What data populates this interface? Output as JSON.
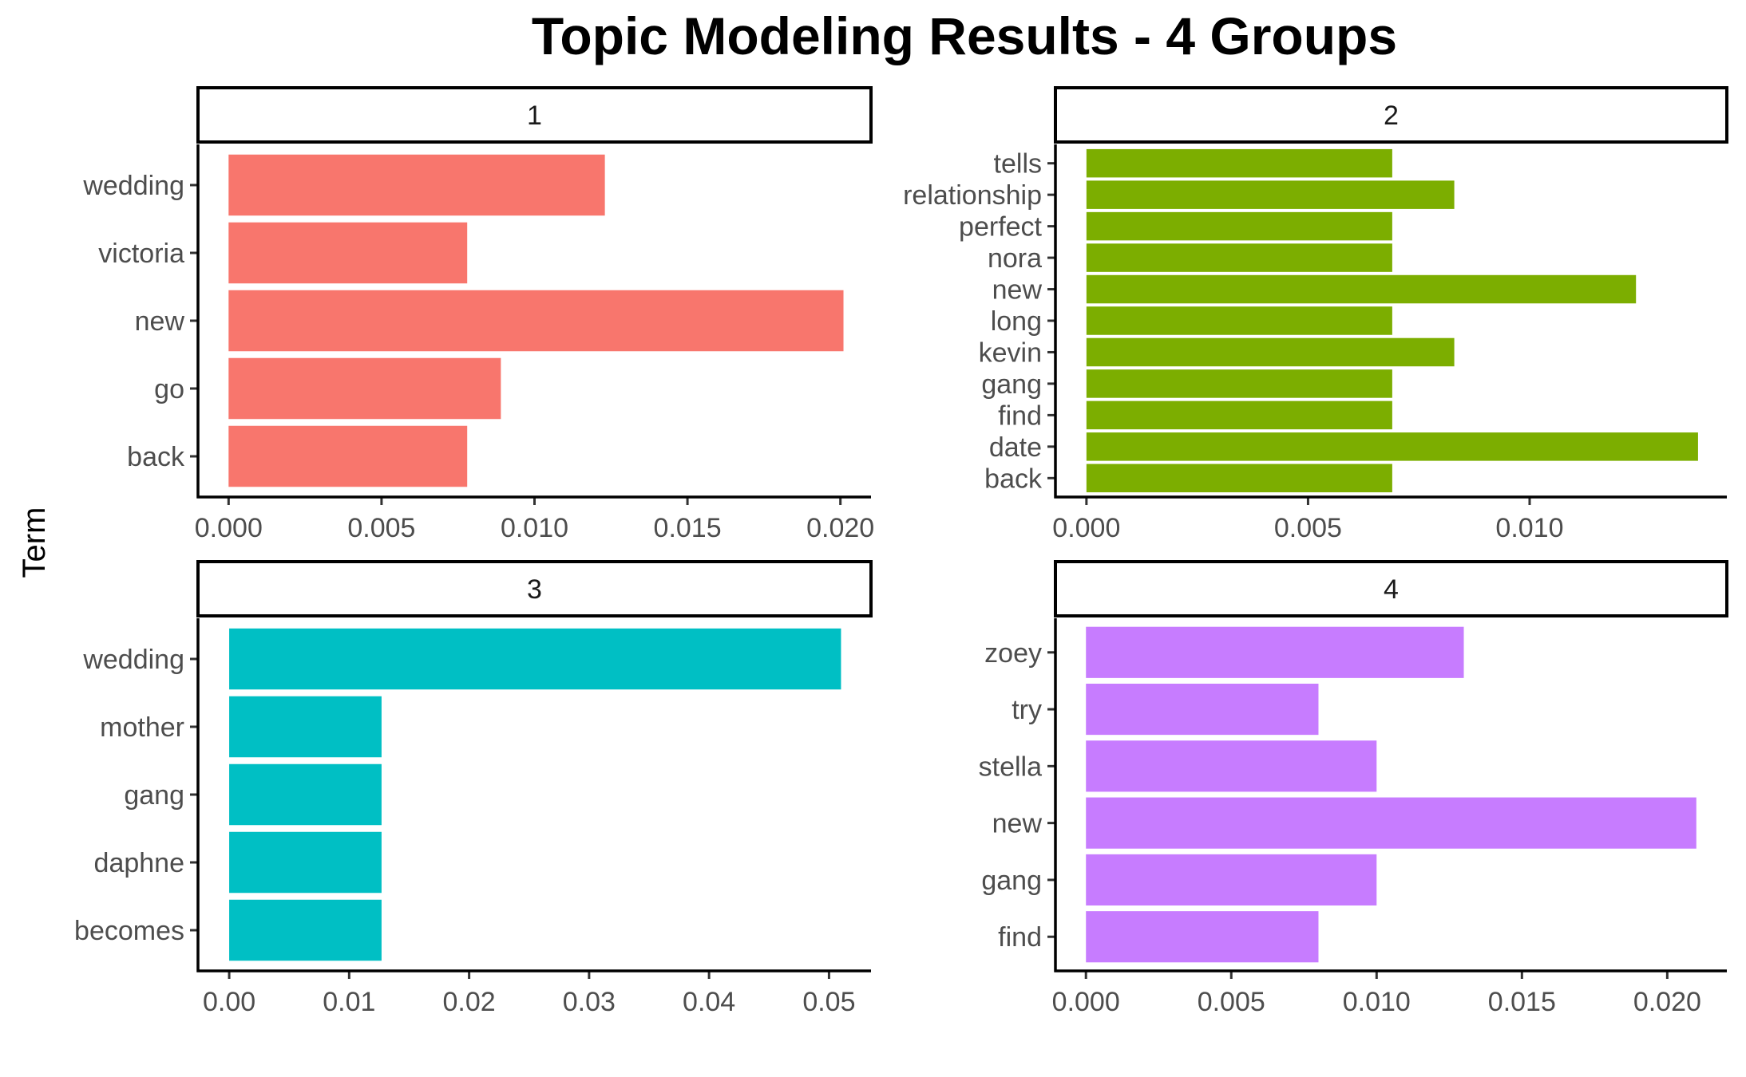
{
  "chart_data": {
    "type": "bar",
    "title": "Topic Modeling Results - 4 Groups",
    "ylabel": "Term",
    "xlabel": "",
    "grid": false,
    "legend": "none",
    "panels": [
      {
        "strip_label": "1",
        "color": "#F8766D",
        "categories": [
          "wedding",
          "victoria",
          "new",
          "go",
          "back"
        ],
        "values": [
          0.0123,
          0.0078,
          0.0201,
          0.0089,
          0.0078
        ],
        "xlim": [
          -0.001,
          0.021
        ],
        "xticks": [
          0,
          0.005,
          0.01,
          0.015,
          0.02
        ],
        "xtick_labels": [
          "0.000",
          "0.005",
          "0.010",
          "0.015",
          "0.020"
        ]
      },
      {
        "strip_label": "2",
        "color": "#7CAE00",
        "categories": [
          "tells",
          "relationship",
          "perfect",
          "nora",
          "new",
          "long",
          "kevin",
          "gang",
          "find",
          "date",
          "back"
        ],
        "values": [
          0.0069,
          0.0083,
          0.0069,
          0.0069,
          0.0124,
          0.0069,
          0.0083,
          0.0069,
          0.0069,
          0.0138,
          0.0069
        ],
        "xlim": [
          -0.0007,
          0.01445
        ],
        "xticks": [
          0,
          0.005,
          0.01
        ],
        "xtick_labels": [
          "0.000",
          "0.005",
          "0.010"
        ]
      },
      {
        "strip_label": "3",
        "color": "#00BFC4",
        "categories": [
          "wedding",
          "mother",
          "gang",
          "daphne",
          "becomes"
        ],
        "values": [
          0.051,
          0.0127,
          0.0127,
          0.0127,
          0.0127
        ],
        "xlim": [
          -0.0026,
          0.0535
        ],
        "xticks": [
          0,
          0.01,
          0.02,
          0.03,
          0.04,
          0.05
        ],
        "xtick_labels": [
          "0.00",
          "0.01",
          "0.02",
          "0.03",
          "0.04",
          "0.05"
        ]
      },
      {
        "strip_label": "4",
        "color": "#C77CFF",
        "categories": [
          "zoey",
          "try",
          "stella",
          "new",
          "gang",
          "find"
        ],
        "values": [
          0.013,
          0.008,
          0.01,
          0.021,
          0.01,
          0.008
        ],
        "xlim": [
          -0.00105,
          0.02205
        ],
        "xticks": [
          0,
          0.005,
          0.01,
          0.015,
          0.02
        ],
        "xtick_labels": [
          "0.000",
          "0.005",
          "0.010",
          "0.015",
          "0.020"
        ]
      }
    ]
  }
}
